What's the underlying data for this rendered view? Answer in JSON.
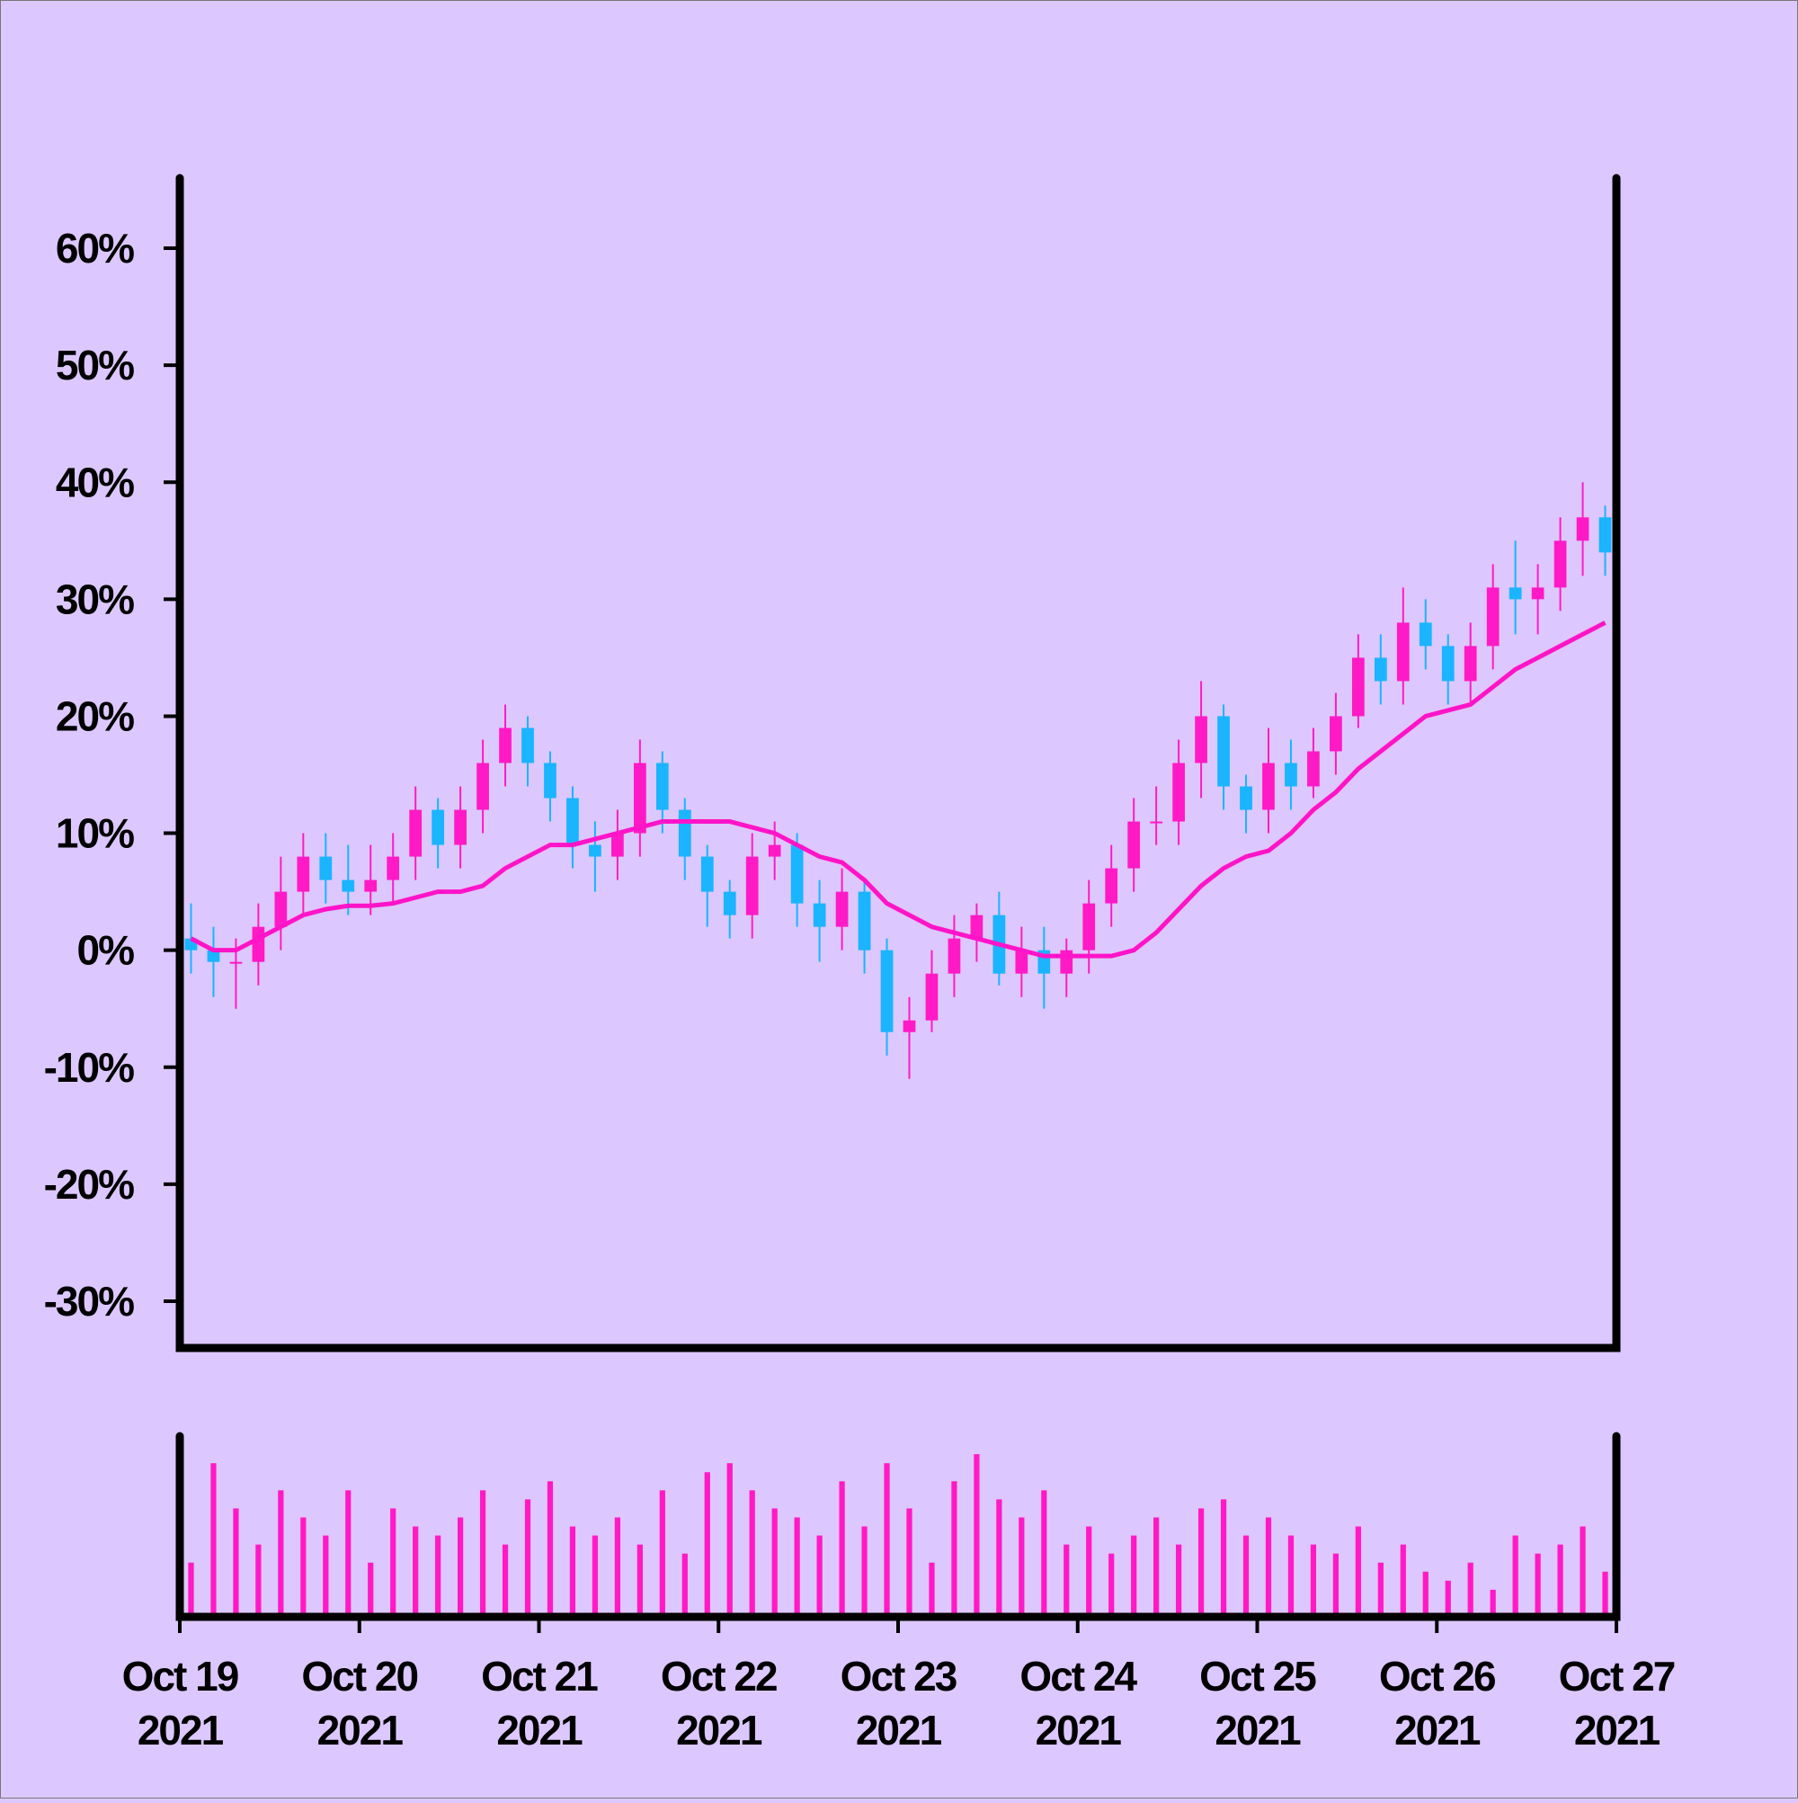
{
  "chart_data": [
    {
      "type": "candlestick",
      "x": [
        0.0625,
        0.1875,
        0.3125,
        0.4375,
        0.5625,
        0.6875,
        0.8125,
        0.9375,
        1.0625,
        1.1875,
        1.3125,
        1.4375,
        1.5625,
        1.6875,
        1.8125,
        1.9375,
        2.0625,
        2.1875,
        2.3125,
        2.4375,
        2.5625,
        2.6875,
        2.8125,
        2.9375,
        3.0625,
        3.1875,
        3.3125,
        3.4375,
        3.5625,
        3.6875,
        3.8125,
        3.9375,
        4.0625,
        4.1875,
        4.3125,
        4.4375,
        4.5625,
        4.6875,
        4.8125,
        4.9375,
        5.0625,
        5.1875,
        5.3125,
        5.4375,
        5.5625,
        5.6875,
        5.8125,
        5.9375,
        6.0625,
        6.1875,
        6.3125,
        6.4375,
        6.5625,
        6.6875,
        6.8125,
        6.9375,
        7.0625,
        7.1875,
        7.3125,
        7.4375,
        7.5625,
        7.6875,
        7.8125,
        7.9375
      ],
      "open": [
        1,
        0,
        -1,
        -1,
        2,
        5,
        8,
        6,
        5,
        6,
        8,
        12,
        9,
        12,
        16,
        19,
        16,
        13,
        9,
        8,
        10,
        16,
        12,
        8,
        5,
        3,
        8,
        9,
        4,
        2,
        5,
        0,
        -7,
        -6,
        -2,
        1,
        3,
        -2,
        0,
        -2,
        0,
        4,
        7,
        11,
        11,
        16,
        20,
        14,
        12,
        16,
        14,
        17,
        20,
        25,
        23,
        28,
        26,
        23,
        26,
        31,
        30,
        31,
        35,
        37
      ],
      "high": [
        4,
        2,
        1,
        4,
        8,
        10,
        10,
        9,
        9,
        10,
        14,
        13,
        14,
        18,
        21,
        20,
        17,
        14,
        11,
        12,
        18,
        17,
        13,
        9,
        6,
        10,
        11,
        10,
        6,
        7,
        6,
        1,
        -4,
        0,
        3,
        4,
        5,
        2,
        2,
        1,
        6,
        9,
        13,
        14,
        18,
        23,
        21,
        15,
        19,
        18,
        19,
        22,
        27,
        27,
        31,
        30,
        27,
        28,
        33,
        35,
        33,
        37,
        40,
        38
      ],
      "low": [
        -2,
        -4,
        -5,
        -3,
        0,
        3,
        4,
        3,
        3,
        4,
        6,
        7,
        7,
        10,
        14,
        14,
        11,
        7,
        5,
        6,
        8,
        10,
        6,
        2,
        1,
        1,
        6,
        2,
        -1,
        0,
        -2,
        -9,
        -11,
        -7,
        -4,
        -1,
        -3,
        -4,
        -5,
        -4,
        -2,
        2,
        5,
        9,
        9,
        13,
        12,
        10,
        10,
        12,
        13,
        15,
        19,
        21,
        21,
        24,
        21,
        21,
        24,
        27,
        27,
        29,
        32,
        32
      ],
      "close": [
        0,
        -1,
        -1,
        2,
        5,
        8,
        6,
        5,
        6,
        8,
        12,
        9,
        12,
        16,
        19,
        16,
        13,
        9,
        8,
        10,
        16,
        12,
        8,
        5,
        3,
        8,
        9,
        4,
        2,
        5,
        0,
        -7,
        -6,
        -2,
        1,
        3,
        -2,
        0,
        -2,
        0,
        4,
        7,
        11,
        11,
        16,
        20,
        14,
        12,
        16,
        14,
        17,
        20,
        25,
        23,
        28,
        26,
        23,
        26,
        31,
        30,
        31,
        35,
        37,
        34
      ],
      "up_color": "#ff1ac6",
      "down_color": "#1ab4ff",
      "line": {
        "color": "#ff14c8",
        "values": [
          1,
          0,
          0,
          1,
          2,
          3,
          3.5,
          3.8,
          3.8,
          4,
          4.5,
          5,
          5,
          5.5,
          7,
          8,
          9,
          9,
          9.5,
          10,
          10.5,
          11,
          11,
          11,
          11,
          10.5,
          10,
          9,
          8,
          7.5,
          6,
          4,
          3,
          2,
          1.5,
          1,
          0.5,
          0,
          -0.5,
          -0.5,
          -0.5,
          -0.5,
          0,
          1.5,
          3.5,
          5.5,
          7,
          8,
          8.5,
          10,
          12,
          13.5,
          15.5,
          17,
          18.5,
          20,
          20.5,
          21,
          22.5,
          24,
          25,
          26,
          27,
          28
        ]
      },
      "xlim": [
        0,
        8
      ],
      "ylim": [
        -34,
        66
      ],
      "yticks": [
        {
          "value": -30,
          "label": "-30%"
        },
        {
          "value": -20,
          "label": "-20%"
        },
        {
          "value": -10,
          "label": "-10%"
        },
        {
          "value": 0,
          "label": "0%"
        },
        {
          "value": 10,
          "label": "10%"
        },
        {
          "value": 20,
          "label": "20%"
        },
        {
          "value": 30,
          "label": "30%"
        },
        {
          "value": 40,
          "label": "40%"
        },
        {
          "value": 50,
          "label": "50%"
        },
        {
          "value": 60,
          "label": "60%"
        }
      ]
    },
    {
      "type": "bar",
      "x": [
        0.0625,
        0.1875,
        0.3125,
        0.4375,
        0.5625,
        0.6875,
        0.8125,
        0.9375,
        1.0625,
        1.1875,
        1.3125,
        1.4375,
        1.5625,
        1.6875,
        1.8125,
        1.9375,
        2.0625,
        2.1875,
        2.3125,
        2.4375,
        2.5625,
        2.6875,
        2.8125,
        2.9375,
        3.0625,
        3.1875,
        3.3125,
        3.4375,
        3.5625,
        3.6875,
        3.8125,
        3.9375,
        4.0625,
        4.1875,
        4.3125,
        4.4375,
        4.5625,
        4.6875,
        4.8125,
        4.9375,
        5.0625,
        5.1875,
        5.3125,
        5.4375,
        5.5625,
        5.6875,
        5.8125,
        5.9375,
        6.0625,
        6.1875,
        6.3125,
        6.4375,
        6.5625,
        6.6875,
        6.8125,
        6.9375,
        7.0625,
        7.1875,
        7.3125,
        7.4375,
        7.5625,
        7.6875,
        7.8125,
        7.9375
      ],
      "values": [
        30,
        85,
        60,
        40,
        70,
        55,
        45,
        70,
        30,
        60,
        50,
        45,
        55,
        70,
        40,
        65,
        75,
        50,
        45,
        55,
        40,
        70,
        35,
        80,
        85,
        70,
        60,
        55,
        45,
        75,
        50,
        85,
        60,
        30,
        75,
        90,
        65,
        55,
        70,
        40,
        50,
        35,
        45,
        55,
        40,
        60,
        65,
        45,
        55,
        45,
        40,
        35,
        50,
        30,
        40,
        25,
        20,
        30,
        15,
        45,
        35,
        40,
        50,
        25
      ],
      "color": "#ff1ac6",
      "xlim": [
        0,
        8
      ],
      "ylim": [
        0,
        100
      ],
      "xticks": [
        {
          "value": 0,
          "label": "Oct 19\n2021"
        },
        {
          "value": 1,
          "label": "Oct 20\n2021"
        },
        {
          "value": 2,
          "label": "Oct 21\n2021"
        },
        {
          "value": 3,
          "label": "Oct 22\n2021"
        },
        {
          "value": 4,
          "label": "Oct 23\n2021"
        },
        {
          "value": 5,
          "label": "Oct 24\n2021"
        },
        {
          "value": 6,
          "label": "Oct 25\n2021"
        },
        {
          "value": 7,
          "label": "Oct 26\n2021"
        },
        {
          "value": 8,
          "label": "Oct 27\n2021"
        }
      ]
    }
  ]
}
